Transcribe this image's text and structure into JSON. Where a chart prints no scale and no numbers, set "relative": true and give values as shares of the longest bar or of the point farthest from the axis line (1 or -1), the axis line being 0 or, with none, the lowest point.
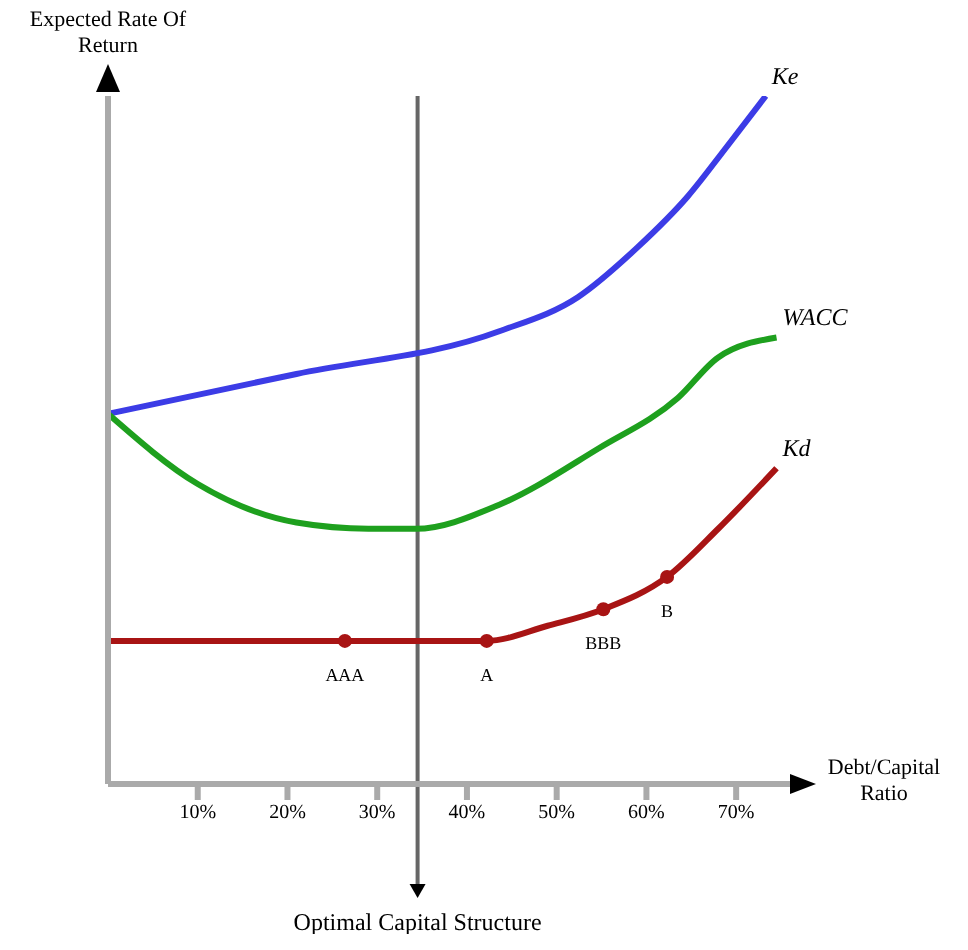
{
  "chart_data": {
    "type": "line",
    "xlabel": "Debt/Capital Ratio",
    "ylabel": "Expected Rate Of Return",
    "relative": true,
    "tick_labels": "x",
    "grid": false,
    "legend": false,
    "marker": "none",
    "line_style": "solid",
    "xlim": [
      0,
      76
    ],
    "xticks": [
      {
        "value": 10,
        "label": "10%"
      },
      {
        "value": 20,
        "label": "20%"
      },
      {
        "value": 30,
        "label": "30%"
      },
      {
        "value": 40,
        "label": "40%"
      },
      {
        "value": 50,
        "label": "50%"
      },
      {
        "value": 60,
        "label": "60%"
      },
      {
        "value": 70,
        "label": "70%"
      }
    ],
    "series": [
      {
        "name": "Ke",
        "color": "#3c3ce6",
        "x": [
          0,
          21,
          43.6,
          52.4,
          59,
          64.6,
          69,
          73.3
        ],
        "values": [
          0.538,
          0.596,
          0.658,
          0.708,
          0.78,
          0.854,
          0.927,
          1
        ]
      },
      {
        "name": "WACC",
        "color": "#1ea01e",
        "x": [
          0,
          10,
          21,
          29,
          34.3,
          43.6,
          54.7,
          63.5,
          68,
          74.5
        ],
        "values": [
          0.538,
          0.436,
          0.38,
          0.371,
          0.371,
          0.406,
          0.488,
          0.561,
          0.62,
          0.649
        ]
      },
      {
        "name": "Kd",
        "color": "#a81414",
        "x": [
          0,
          26.4,
          42.2,
          49,
          55.2,
          62.3,
          68,
          74.5
        ],
        "values": [
          0.208,
          0.208,
          0.208,
          0.23,
          0.254,
          0.301,
          0.371,
          0.459
        ]
      },
      {
        "type": "scatter",
        "color": "#a81414",
        "marker": "circle",
        "x": [
          26.4,
          42.2,
          55.2,
          62.3
        ],
        "values": [
          0.208,
          0.208,
          0.254,
          0.301
        ]
      }
    ],
    "ref_lines": [
      {
        "axis": "x",
        "value": 34.5,
        "label": "Optimal Capital Structure",
        "color": "#666666"
      }
    ],
    "annotations": [
      {
        "text": "AAA",
        "x": 26.4,
        "y": 0.208
      },
      {
        "text": "A",
        "x": 42.2,
        "y": 0.208
      },
      {
        "text": "BBB",
        "x": 55.2,
        "y": 0.254
      },
      {
        "text": "B",
        "x": 62.3,
        "y": 0.301
      }
    ]
  }
}
